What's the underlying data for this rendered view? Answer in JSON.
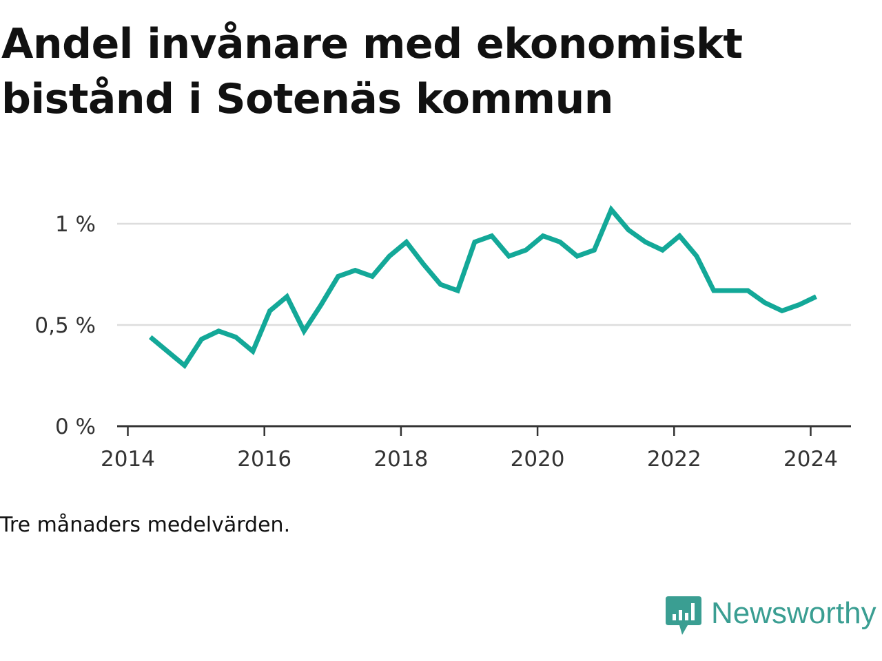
{
  "title": "Andel invånare med ekonomiskt bistånd i Sotenäs kommun",
  "note": "Tre månaders medelvärden.",
  "brand": {
    "name": "Newsworthy",
    "icon": "newsworthy-logo-icon",
    "color": "#3a9e92"
  },
  "colors": {
    "line": "#13a898",
    "grid": "#dddddd",
    "axis": "#333333"
  },
  "chart_data": {
    "type": "line",
    "title": "Andel invånare med ekonomiskt bistånd i Sotenäs kommun",
    "xlabel": "",
    "ylabel": "",
    "xlim": [
      2014,
      2024.6
    ],
    "ylim": [
      0,
      1.1
    ],
    "x_ticks": [
      2014,
      2016,
      2018,
      2020,
      2022,
      2024
    ],
    "x_tick_labels": [
      "2014",
      "2016",
      "2018",
      "2020",
      "2022",
      "2024"
    ],
    "y_ticks": [
      0,
      0.5,
      1
    ],
    "y_tick_labels": [
      "0 %",
      "0,5 %",
      "1 %"
    ],
    "grid": "horizontal",
    "series": [
      {
        "x": [
          2014.33,
          2014.83,
          2015.08,
          2015.33,
          2015.58,
          2015.83,
          2016.08,
          2016.33,
          2016.58,
          2016.83,
          2017.08,
          2017.33,
          2017.58,
          2017.83,
          2018.08,
          2018.33,
          2018.58,
          2018.83,
          2019.08,
          2019.33,
          2019.58,
          2019.83,
          2020.08,
          2020.33,
          2020.58,
          2020.83,
          2021.08,
          2021.33,
          2021.58,
          2021.83,
          2022.08,
          2022.33,
          2022.58,
          2022.83,
          2023.08,
          2023.33,
          2023.58,
          2023.83,
          2024.08
        ],
        "values": [
          0.44,
          0.3,
          0.43,
          0.47,
          0.44,
          0.37,
          0.57,
          0.64,
          0.47,
          0.6,
          0.74,
          0.77,
          0.74,
          0.84,
          0.91,
          0.8,
          0.7,
          0.67,
          0.91,
          0.94,
          0.84,
          0.87,
          0.94,
          0.91,
          0.84,
          0.87,
          1.07,
          0.97,
          0.91,
          0.87,
          0.94,
          0.84,
          0.67,
          0.67,
          0.67,
          0.61,
          0.57,
          0.6,
          0.64
        ]
      }
    ]
  }
}
